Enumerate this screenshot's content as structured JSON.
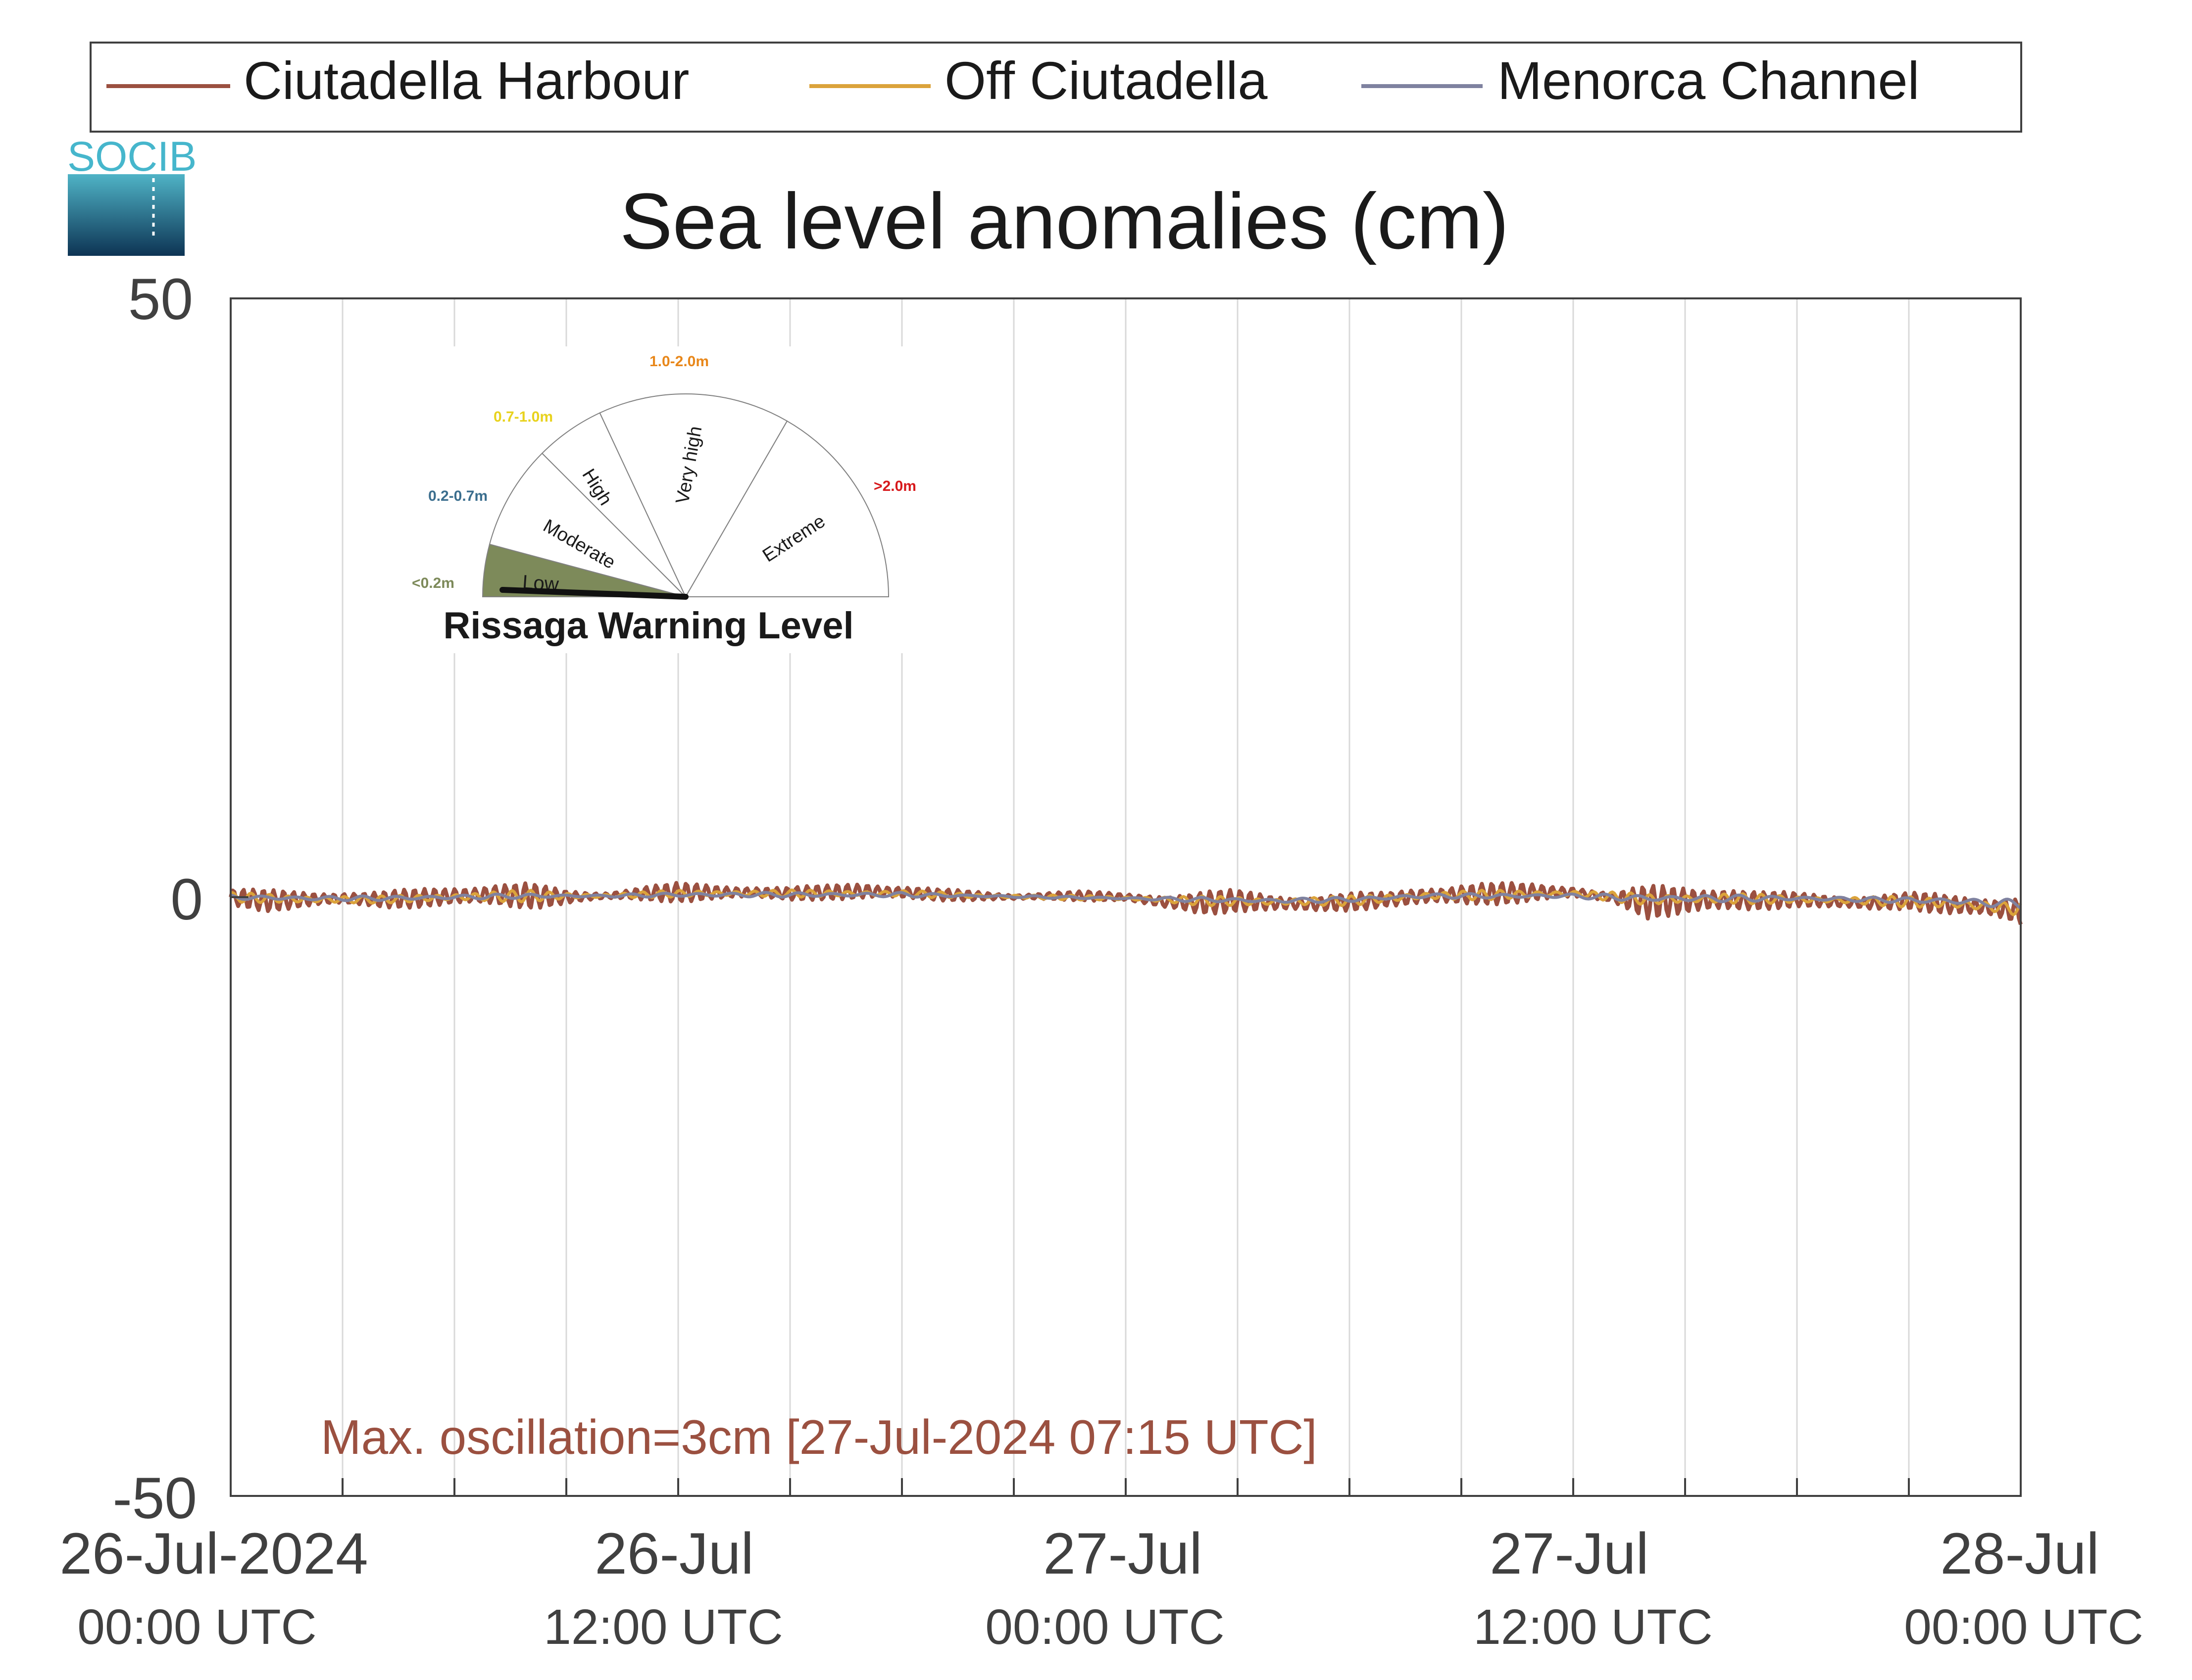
{
  "logo": {
    "text": "SOCIB"
  },
  "colors": {
    "harbour": "#9b5040",
    "off": "#dba33b",
    "channel": "#7f82a0",
    "grid": "#d9d9d9",
    "axis": "#404040",
    "low_fill": "#7d8a5a",
    "annotation": "#9b5040"
  },
  "gauge": {
    "title": "Rissaga Warning Level",
    "levels": [
      {
        "name": "Low",
        "range": "<0.2m",
        "color": "#7d8a5a"
      },
      {
        "name": "Moderate",
        "range": "0.2-0.7m",
        "color": "#3b6e8e"
      },
      {
        "name": "High",
        "range": "0.7-1.0m",
        "color": "#e8d21d"
      },
      {
        "name": "Very high",
        "range": "1.0-2.0m",
        "color": "#e8871a"
      },
      {
        "name": "Extreme",
        "range": ">2.0m",
        "color": "#d7191c"
      }
    ],
    "current_level": "Low"
  },
  "chart_data": {
    "type": "line",
    "title": "Sea level anomalies (cm)",
    "xlabel": "",
    "ylabel": "",
    "ylim": [
      -50,
      50
    ],
    "xlim_hours": [
      0,
      48
    ],
    "grid": "vertical every 3 hours",
    "legend_position": "top",
    "yticks": [
      "50",
      "0",
      "-50"
    ],
    "xticks": [
      {
        "hour": 0,
        "date": "26-Jul-2024",
        "time": "00:00 UTC"
      },
      {
        "hour": 12,
        "date": "26-Jul",
        "time": "12:00 UTC"
      },
      {
        "hour": 24,
        "date": "27-Jul",
        "time": "00:00 UTC"
      },
      {
        "hour": 36,
        "date": "27-Jul",
        "time": "12:00 UTC"
      },
      {
        "hour": 48,
        "date": "28-Jul",
        "time": "00:00 UTC"
      }
    ],
    "series": [
      {
        "name": "Ciutadella Harbour",
        "key": "harbour",
        "x": [
          0,
          1,
          2,
          3,
          4,
          5,
          6,
          7,
          8,
          9,
          10,
          11,
          12,
          13,
          14,
          15,
          16,
          17,
          18,
          19,
          20,
          21,
          22,
          23,
          24,
          25,
          26,
          27,
          28,
          29,
          30,
          31,
          32,
          33,
          34,
          35,
          36,
          37,
          38,
          39,
          40,
          41,
          42,
          43,
          44,
          45,
          46,
          47,
          48
        ],
        "y": [
          0,
          -0.3,
          -0.2,
          -0.1,
          -0.2,
          -0.1,
          0.1,
          0.2,
          0.1,
          0,
          0.1,
          0.3,
          0.4,
          0.4,
          0.4,
          0.3,
          0.4,
          0.5,
          0.4,
          0.2,
          0.1,
          0,
          0.1,
          0.1,
          0,
          -0.4,
          -0.5,
          -0.3,
          -0.5,
          -0.6,
          -0.4,
          -0.2,
          0.1,
          0.2,
          0.3,
          0.4,
          0.4,
          0,
          -0.4,
          -0.3,
          -0.2,
          -0.3,
          -0.2,
          -0.4,
          -0.5,
          -0.3,
          -0.6,
          -0.8,
          -1.2
        ],
        "amplitude": [
          0.8,
          0.9,
          0.8,
          0.7,
          0.7,
          0.8,
          1,
          1.2,
          1.1,
          0.6,
          0.4,
          0.7,
          0.8,
          0.7,
          0.7,
          0.6,
          0.6,
          0.9,
          0.7,
          0.5,
          0.4,
          0.3,
          0.4,
          0.4,
          0.3,
          0.8,
          1.1,
          0.9,
          0.8,
          0.9,
          0.8,
          0.6,
          1,
          1.1,
          0.9,
          0.8,
          0.7,
          0.4,
          1.4,
          1.5,
          1.4,
          0.8,
          0.6,
          0.7,
          0.8,
          0.7,
          0.9,
          1.1,
          1.5
        ]
      },
      {
        "name": "Off Ciutadella",
        "key": "off",
        "x": [
          0,
          2,
          4,
          6,
          8,
          10,
          12,
          14,
          16,
          18,
          20,
          22,
          24,
          26,
          28,
          30,
          32,
          34,
          36,
          38,
          40,
          42,
          44,
          46,
          48
        ],
        "y": [
          0,
          -0.2,
          -0.2,
          0,
          0.1,
          0.1,
          0.3,
          0.3,
          0.3,
          0.3,
          0.1,
          0,
          -0.1,
          -0.3,
          -0.4,
          -0.3,
          0.1,
          0.2,
          0.3,
          -0.2,
          -0.1,
          -0.2,
          -0.3,
          -0.5,
          -1
        ],
        "amplitude": [
          0.4,
          0.4,
          0.3,
          0.4,
          0.5,
          0.2,
          0.3,
          0.3,
          0.3,
          0.3,
          0.2,
          0.2,
          0.2,
          0.4,
          0.4,
          0.4,
          0.4,
          0.4,
          0.3,
          0.5,
          0.5,
          0.3,
          0.4,
          0.5,
          0.6
        ]
      },
      {
        "name": "Menorca Channel",
        "key": "channel",
        "x": [
          0,
          2,
          4,
          6,
          8,
          10,
          12,
          14,
          16,
          18,
          20,
          22,
          24,
          26,
          28,
          30,
          32,
          34,
          36,
          38,
          40,
          42,
          44,
          46,
          48
        ],
        "y": [
          0,
          -0.1,
          -0.1,
          0,
          0.1,
          0.1,
          0.2,
          0.2,
          0.2,
          0.2,
          0.1,
          0,
          -0.1,
          -0.2,
          -0.3,
          -0.2,
          0.1,
          0.1,
          0.1,
          -0.1,
          -0.1,
          -0.1,
          -0.2,
          -0.3,
          -0.6
        ],
        "amplitude": [
          0.2,
          0.2,
          0.2,
          0.2,
          0.2,
          0.1,
          0.2,
          0.2,
          0.2,
          0.2,
          0.1,
          0.1,
          0.1,
          0.2,
          0.2,
          0.2,
          0.2,
          0.2,
          0.2,
          0.3,
          0.3,
          0.2,
          0.2,
          0.3,
          0.4
        ]
      }
    ],
    "annotation": "Max. oscillation=3cm [27-Jul-2024 07:15 UTC]"
  }
}
